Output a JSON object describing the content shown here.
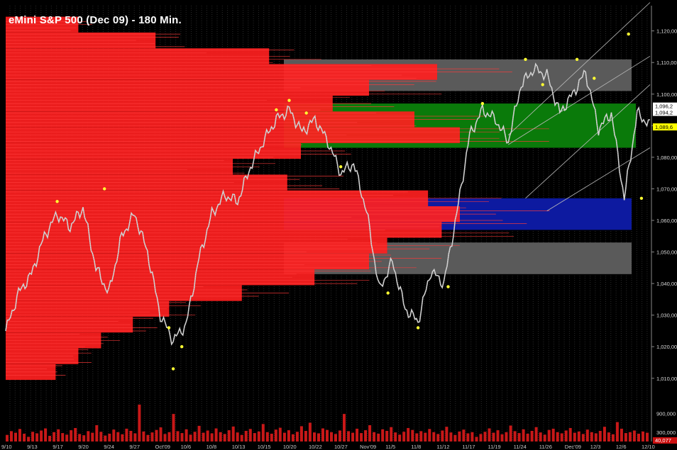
{
  "chart_data": {
    "type": "line",
    "title": "eMini S&P 500 (Dec 09) - 180 Min.",
    "ylim": [
      1003,
      1128
    ],
    "y_ticks": [
      "1,010,00",
      "1,020,00",
      "1,030,00",
      "1,040,00",
      "1,050,00",
      "1,060,00",
      "1,070,00",
      "1,080,00",
      "1,090,00",
      "1,100,00",
      "1,110,00",
      "1,120,00"
    ],
    "y_tick_values": [
      1010,
      1020,
      1030,
      1040,
      1050,
      1060,
      1070,
      1080,
      1090,
      1100,
      1110,
      1120
    ],
    "x_ticks": [
      "9/10",
      "9/13",
      "9/17",
      "9/20",
      "9/24",
      "9/27",
      "Oct'09",
      "10/6",
      "10/8",
      "10/13",
      "10/15",
      "10/20",
      "10/22",
      "10/27",
      "Nov'09",
      "11/5",
      "11/8",
      "11/12",
      "11/17",
      "11/19",
      "11/24",
      "11/26",
      "Dec'09",
      "12/3",
      "12/6",
      "12/10"
    ],
    "price_series": {
      "name": "",
      "color": "#c8c8c8",
      "x": [
        0,
        3,
        6,
        9,
        12,
        15,
        18,
        21,
        24,
        27,
        30,
        33,
        36,
        39,
        42,
        45,
        48,
        51,
        54,
        57,
        60,
        63,
        66,
        69,
        72,
        75,
        78,
        81,
        84,
        87,
        90,
        93,
        96,
        99,
        102,
        105,
        108,
        111,
        114,
        117,
        120,
        123,
        126,
        129,
        132,
        135,
        138,
        141,
        144,
        147,
        150
      ],
      "y": [
        1025,
        1037,
        1043,
        1055,
        1062,
        1058,
        1064,
        1045,
        1037,
        1055,
        1062,
        1050,
        1030,
        1022,
        1027,
        1048,
        1062,
        1068,
        1066,
        1077,
        1085,
        1092,
        1095,
        1088,
        1092,
        1085,
        1075,
        1078,
        1063,
        1038,
        1047,
        1032,
        1028,
        1044,
        1040,
        1062,
        1087,
        1095,
        1092,
        1085,
        1103,
        1108,
        1106,
        1094,
        1100,
        1107,
        1089,
        1094,
        1067,
        1094,
        1090
      ]
    },
    "swing_points": {
      "color": "#ffff33",
      "x": [
        12,
        23,
        38,
        39,
        41,
        63,
        66,
        70,
        78,
        89,
        96,
        103,
        111,
        121,
        125,
        133,
        137,
        145,
        148
      ],
      "y": [
        1066,
        1070,
        1026,
        1013,
        1020,
        1095,
        1098,
        1094,
        1077,
        1037,
        1026,
        1039,
        1097,
        1111,
        1103,
        1111,
        1105,
        1119,
        1067
      ]
    },
    "volume_profile": {
      "color": "#ff2020",
      "price": [
        1012,
        1017,
        1022,
        1027,
        1032,
        1037,
        1042,
        1047,
        1052,
        1057,
        1062,
        1067,
        1072,
        1077,
        1082,
        1087,
        1092,
        1097,
        1102,
        1107,
        1112,
        1117,
        1122
      ],
      "volume": [
        11,
        16,
        21,
        28,
        36,
        52,
        68,
        80,
        84,
        96,
        100,
        93,
        62,
        50,
        65,
        100,
        90,
        72,
        80,
        95,
        58,
        33,
        16
      ]
    },
    "zones": [
      {
        "name": "",
        "color": "#5a5a5a",
        "low": 1101,
        "high": 1111
      },
      {
        "name": "",
        "color": "#0a7a0a",
        "low": 1083,
        "high": 1097
      },
      {
        "name": "",
        "color": "#0d1aa0",
        "low": 1057,
        "high": 1067
      },
      {
        "name": "",
        "color": "#5a5a5a",
        "low": 1043,
        "high": 1053
      }
    ],
    "trend_lines": [
      {
        "x": [
          117,
          150
        ],
        "y": [
          1087,
          1129
        ]
      },
      {
        "x": [
          117,
          150
        ],
        "y": [
          1084,
          1112
        ]
      },
      {
        "x": [
          121,
          150
        ],
        "y": [
          1067,
          1103
        ]
      },
      {
        "x": [
          126,
          150
        ],
        "y": [
          1063,
          1083
        ]
      }
    ],
    "price_tags": [
      {
        "label": "1,096,2",
        "value": 1096.2,
        "bg": "#ffffff",
        "fg": "#000000"
      },
      {
        "label": "1,094,2",
        "value": 1094.2,
        "bg": "#ffffff",
        "fg": "#000000"
      },
      {
        "label": "1,089,6",
        "value": 1089.6,
        "bg": "#ffff00",
        "fg": "#000000"
      }
    ],
    "volume_panel": {
      "color": "#c81818",
      "ylim": [
        0,
        1200000
      ],
      "y_ticks": [
        "900,000",
        "300,000"
      ],
      "y_tick_values": [
        900000,
        300000
      ],
      "current_label": "40,077",
      "values": [
        210000,
        330000,
        280000,
        400000,
        250000,
        150000,
        310000,
        260000,
        350000,
        420000,
        180000,
        300000,
        390000,
        270000,
        220000,
        360000,
        430000,
        240000,
        200000,
        330000,
        280000,
        520000,
        310000,
        190000,
        250000,
        380000,
        300000,
        230000,
        410000,
        340000,
        260000,
        1180000,
        320000,
        210000,
        290000,
        370000,
        450000,
        240000,
        300000,
        880000,
        330000,
        270000,
        390000,
        220000,
        310000,
        500000,
        280000,
        350000,
        260000,
        420000,
        300000,
        240000,
        360000,
        480000,
        290000,
        210000,
        340000,
        400000,
        270000,
        320000,
        560000,
        300000,
        250000,
        380000,
        440000,
        280000,
        360000,
        230000,
        310000,
        490000,
        340000,
        600000,
        290000,
        260000,
        420000,
        370000,
        300000,
        240000,
        350000,
        880000,
        330000,
        280000,
        410000,
        270000,
        360000,
        520000,
        300000,
        250000,
        390000,
        340000,
        460000,
        290000,
        220000,
        310000,
        430000,
        370000,
        260000,
        330000,
        280000,
        400000,
        300000,
        240000,
        350000,
        470000,
        290000,
        210000,
        320000,
        380000,
        260000,
        300000,
        150000,
        240000,
        310000,
        420000,
        280000,
        360000,
        230000,
        300000,
        510000,
        330000,
        270000,
        390000,
        250000,
        340000,
        460000,
        290000,
        220000,
        370000,
        410000,
        300000,
        260000,
        350000,
        430000,
        280000,
        320000,
        240000,
        380000,
        300000,
        260000,
        340000,
        470000,
        290000,
        230000,
        620000,
        410000,
        270000,
        300000,
        350000,
        250000,
        320000,
        280000
      ]
    }
  }
}
